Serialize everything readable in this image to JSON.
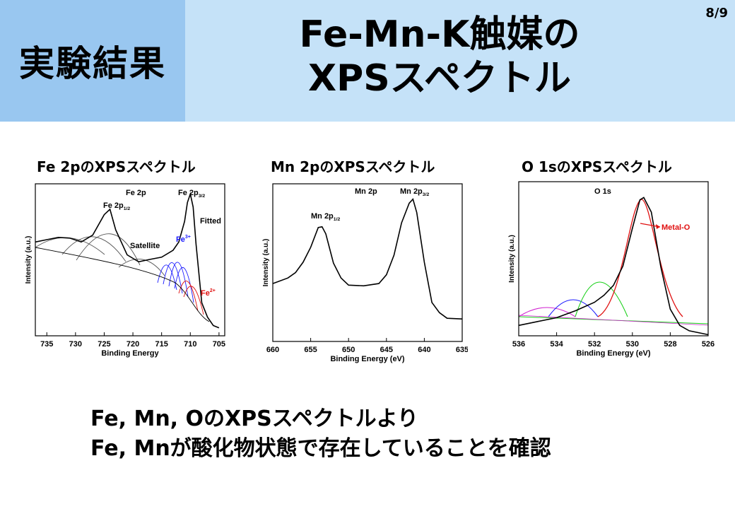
{
  "header": {
    "section_label": "実験結果",
    "title_line1": "Fe-Mn-K触媒の",
    "title_line2": "XPSスペクトル",
    "page_number": "8/9"
  },
  "colors": {
    "header_left": "#99c7f0",
    "header_right": "#c5e2f8",
    "fe3": "#1a1aff",
    "fe2": "#e01010",
    "metal_o": "#e01010"
  },
  "chart_data": [
    {
      "type": "line",
      "title": "Fe 2pのXPSスペクトル",
      "xlabel": "Binding Energy",
      "ylabel": "Intensity (a.u.)",
      "xlim": [
        737,
        704
      ],
      "xticks": [
        "735",
        "730",
        "725",
        "720",
        "715",
        "710",
        "705"
      ],
      "annotations": [
        "Fe 2p",
        "Fe 2p1/2",
        "Fe 2p3/2",
        "Satellite",
        "Fitted",
        "Fe3+",
        "Fe2+"
      ],
      "series": [
        {
          "values": [
            [
              737,
              0.62
            ],
            [
              735,
              0.63
            ],
            [
              733,
              0.65
            ],
            [
              731,
              0.64
            ],
            [
              729,
              0.62
            ],
            [
              727,
              0.66
            ],
            [
              725,
              0.8
            ],
            [
              724,
              0.83
            ],
            [
              723,
              0.7
            ],
            [
              721,
              0.53
            ],
            [
              719,
              0.49
            ],
            [
              717,
              0.5
            ],
            [
              715,
              0.52
            ],
            [
              713,
              0.56
            ],
            [
              712,
              0.62
            ],
            [
              711,
              0.75
            ],
            [
              710.5,
              0.88
            ],
            [
              710,
              0.93
            ],
            [
              709.5,
              0.85
            ],
            [
              709,
              0.6
            ],
            [
              708,
              0.22
            ],
            [
              707,
              0.12
            ],
            [
              706,
              0.07
            ],
            [
              705,
              0.05
            ]
          ]
        }
      ]
    },
    {
      "type": "line",
      "title": "Mn 2pのXPSスペクトル",
      "xlabel": "Binding Energy (eV)",
      "ylabel": "Intensity (a.u.)",
      "xlim": [
        660,
        635
      ],
      "xticks": [
        "660",
        "655",
        "650",
        "645",
        "640",
        "635"
      ],
      "annotations": [
        "Mn 2p",
        "Mn 2p1/2",
        "Mn 2p3/2"
      ],
      "series": [
        {
          "values": [
            [
              660,
              0.37
            ],
            [
              658,
              0.4
            ],
            [
              657,
              0.44
            ],
            [
              656,
              0.5
            ],
            [
              655,
              0.6
            ],
            [
              654,
              0.72
            ],
            [
              653.5,
              0.73
            ],
            [
              653,
              0.68
            ],
            [
              652,
              0.5
            ],
            [
              651,
              0.4
            ],
            [
              650,
              0.36
            ],
            [
              648,
              0.35
            ],
            [
              646,
              0.37
            ],
            [
              645,
              0.42
            ],
            [
              644,
              0.55
            ],
            [
              643,
              0.75
            ],
            [
              642,
              0.88
            ],
            [
              641.5,
              0.9
            ],
            [
              641,
              0.82
            ],
            [
              640,
              0.5
            ],
            [
              639,
              0.25
            ],
            [
              638,
              0.18
            ],
            [
              637,
              0.15
            ],
            [
              635,
              0.14
            ]
          ]
        }
      ]
    },
    {
      "type": "line",
      "title": "O 1sのXPSスペクトル",
      "xlabel": "Binding Energy (eV)",
      "ylabel": "Intensity (a.u.)",
      "xlim": [
        536,
        526
      ],
      "xticks": [
        "536",
        "534",
        "532",
        "530",
        "528",
        "526"
      ],
      "annotations": [
        "O 1s",
        "Metal-O"
      ],
      "series": [
        {
          "values": [
            [
              536,
              0.07
            ],
            [
              535,
              0.09
            ],
            [
              534,
              0.12
            ],
            [
              533,
              0.16
            ],
            [
              532,
              0.22
            ],
            [
              531.5,
              0.26
            ],
            [
              531,
              0.33
            ],
            [
              530.5,
              0.45
            ],
            [
              530,
              0.7
            ],
            [
              529.6,
              0.88
            ],
            [
              529.4,
              0.9
            ],
            [
              529,
              0.8
            ],
            [
              528.5,
              0.45
            ],
            [
              528,
              0.17
            ],
            [
              527.5,
              0.07
            ],
            [
              527,
              0.03
            ],
            [
              526,
              0.01
            ]
          ]
        }
      ]
    }
  ],
  "conclusion": {
    "line1": "Fe, Mn, OのXPSスペクトルより",
    "line2": "Fe, Mnが酸化物状態で存在していることを確認"
  }
}
